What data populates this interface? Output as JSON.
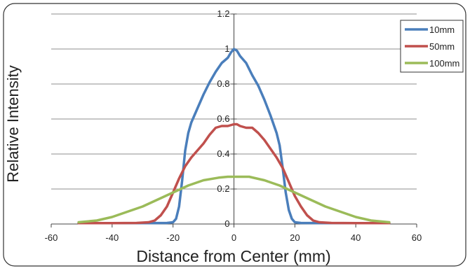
{
  "chart_data": {
    "type": "line",
    "title": "",
    "xlabel": "Distance from Center (mm)",
    "ylabel": "Relative Intensity",
    "xlim": [
      -60,
      60
    ],
    "ylim": [
      0,
      1.2
    ],
    "xticks": [
      -60,
      -40,
      -20,
      0,
      20,
      40,
      60
    ],
    "yticks": [
      0,
      0.2,
      0.4,
      0.6,
      0.8,
      1,
      1.2
    ],
    "x_tick_labels": [
      "-60",
      "-40",
      "-20",
      "0",
      "20",
      "40",
      "60"
    ],
    "y_tick_labels": [
      "0",
      "0.2",
      "0.4",
      "0.6",
      "0.8",
      "1",
      "1.2"
    ],
    "grid": "horizontal",
    "legend_position": "top-right",
    "series": [
      {
        "name": "10mm",
        "color": "#4a7ebb",
        "points": [
          [
            -51,
            0.005
          ],
          [
            -40,
            0.005
          ],
          [
            -30,
            0.005
          ],
          [
            -22,
            0.006
          ],
          [
            -20,
            0.01
          ],
          [
            -19,
            0.03
          ],
          [
            -18,
            0.1
          ],
          [
            -17,
            0.25
          ],
          [
            -16,
            0.42
          ],
          [
            -15,
            0.52
          ],
          [
            -14,
            0.58
          ],
          [
            -12,
            0.66
          ],
          [
            -10,
            0.74
          ],
          [
            -8,
            0.81
          ],
          [
            -6,
            0.87
          ],
          [
            -4,
            0.92
          ],
          [
            -2,
            0.95
          ],
          [
            -1,
            0.98
          ],
          [
            0,
            1.0
          ],
          [
            1,
            0.99
          ],
          [
            2,
            0.96
          ],
          [
            4,
            0.92
          ],
          [
            6,
            0.85
          ],
          [
            8,
            0.79
          ],
          [
            10,
            0.71
          ],
          [
            12,
            0.62
          ],
          [
            14,
            0.52
          ],
          [
            15,
            0.45
          ],
          [
            16,
            0.32
          ],
          [
            17,
            0.18
          ],
          [
            18,
            0.08
          ],
          [
            19,
            0.03
          ],
          [
            20,
            0.01
          ],
          [
            22,
            0.006
          ],
          [
            30,
            0.005
          ],
          [
            40,
            0.005
          ],
          [
            51,
            0.005
          ]
        ]
      },
      {
        "name": "50mm",
        "color": "#c0504d",
        "points": [
          [
            -51,
            0.005
          ],
          [
            -40,
            0.005
          ],
          [
            -32,
            0.006
          ],
          [
            -28,
            0.01
          ],
          [
            -26,
            0.02
          ],
          [
            -24,
            0.05
          ],
          [
            -22,
            0.1
          ],
          [
            -20,
            0.18
          ],
          [
            -18,
            0.26
          ],
          [
            -16,
            0.33
          ],
          [
            -14,
            0.38
          ],
          [
            -12,
            0.42
          ],
          [
            -10,
            0.46
          ],
          [
            -8,
            0.51
          ],
          [
            -6,
            0.55
          ],
          [
            -4,
            0.56
          ],
          [
            -2,
            0.56
          ],
          [
            0,
            0.57
          ],
          [
            1,
            0.57
          ],
          [
            2,
            0.56
          ],
          [
            4,
            0.55
          ],
          [
            6,
            0.55
          ],
          [
            8,
            0.52
          ],
          [
            10,
            0.48
          ],
          [
            12,
            0.43
          ],
          [
            14,
            0.38
          ],
          [
            16,
            0.32
          ],
          [
            18,
            0.24
          ],
          [
            20,
            0.16
          ],
          [
            22,
            0.1
          ],
          [
            24,
            0.05
          ],
          [
            26,
            0.02
          ],
          [
            28,
            0.01
          ],
          [
            32,
            0.006
          ],
          [
            40,
            0.005
          ],
          [
            51,
            0.005
          ]
        ]
      },
      {
        "name": "100mm",
        "color": "#9bbb59",
        "points": [
          [
            -51,
            0.01
          ],
          [
            -45,
            0.02
          ],
          [
            -40,
            0.04
          ],
          [
            -35,
            0.07
          ],
          [
            -30,
            0.1
          ],
          [
            -25,
            0.14
          ],
          [
            -20,
            0.18
          ],
          [
            -15,
            0.22
          ],
          [
            -10,
            0.25
          ],
          [
            -5,
            0.265
          ],
          [
            -2,
            0.27
          ],
          [
            0,
            0.27
          ],
          [
            2,
            0.27
          ],
          [
            5,
            0.27
          ],
          [
            10,
            0.25
          ],
          [
            15,
            0.22
          ],
          [
            20,
            0.18
          ],
          [
            25,
            0.14
          ],
          [
            30,
            0.1
          ],
          [
            35,
            0.07
          ],
          [
            40,
            0.04
          ],
          [
            45,
            0.02
          ],
          [
            51,
            0.01
          ]
        ]
      }
    ]
  }
}
